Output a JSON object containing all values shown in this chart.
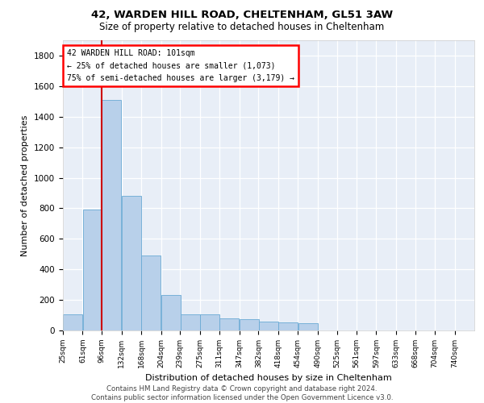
{
  "title1": "42, WARDEN HILL ROAD, CHELTENHAM, GL51 3AW",
  "title2": "Size of property relative to detached houses in Cheltenham",
  "xlabel": "Distribution of detached houses by size in Cheltenham",
  "ylabel": "Number of detached properties",
  "bin_labels": [
    "25sqm",
    "61sqm",
    "96sqm",
    "132sqm",
    "168sqm",
    "204sqm",
    "239sqm",
    "275sqm",
    "311sqm",
    "347sqm",
    "382sqm",
    "418sqm",
    "454sqm",
    "490sqm",
    "525sqm",
    "561sqm",
    "597sqm",
    "633sqm",
    "668sqm",
    "704sqm",
    "740sqm"
  ],
  "bin_edges": [
    25,
    61,
    96,
    132,
    168,
    204,
    239,
    275,
    311,
    347,
    382,
    418,
    454,
    490,
    525,
    561,
    597,
    633,
    668,
    704,
    740
  ],
  "bar_heights": [
    105,
    790,
    1510,
    880,
    490,
    230,
    105,
    105,
    80,
    75,
    60,
    55,
    45,
    0,
    0,
    0,
    0,
    0,
    0,
    0,
    0
  ],
  "bar_color": "#b8d0ea",
  "bar_edge_color": "#6aaad4",
  "vline_x": 96,
  "vline_color": "#cc0000",
  "legend_title": "42 WARDEN HILL ROAD: 101sqm",
  "legend_line1": "← 25% of detached houses are smaller (1,073)",
  "legend_line2": "75% of semi-detached houses are larger (3,179) →",
  "ylim": [
    0,
    1900
  ],
  "yticks": [
    0,
    200,
    400,
    600,
    800,
    1000,
    1200,
    1400,
    1600,
    1800
  ],
  "footer1": "Contains HM Land Registry data © Crown copyright and database right 2024.",
  "footer2": "Contains public sector information licensed under the Open Government Licence v3.0.",
  "background_color": "#e8eef7"
}
